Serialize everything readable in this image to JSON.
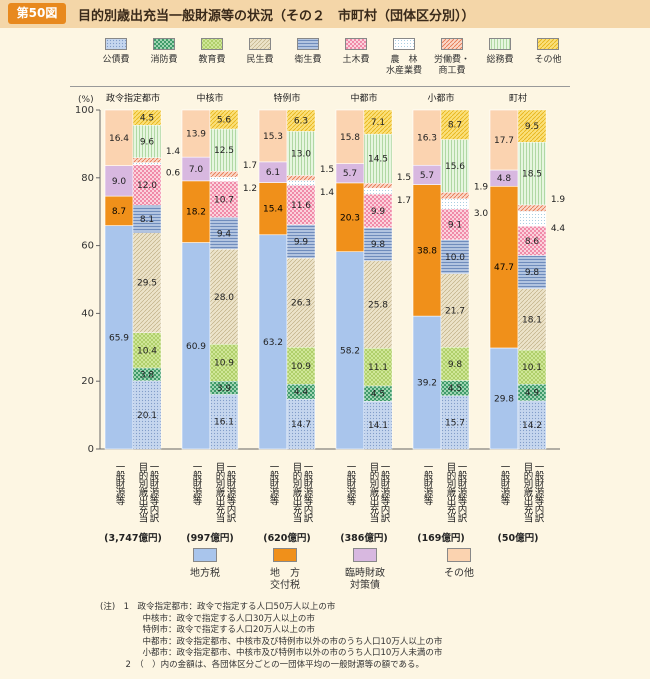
{
  "header": {
    "badge": "第50図",
    "title": "目的別歳出充当一般財源等の状況（その２　市町村（団体区分別））"
  },
  "legend": [
    {
      "key": "kosai",
      "label": "公債費",
      "label2": "",
      "color": "#b8cde8"
    },
    {
      "key": "shobo",
      "label": "消防費",
      "label2": "",
      "color": "#5fb88a"
    },
    {
      "key": "kyoiku",
      "label": "教育費",
      "label2": "",
      "color": "#c5e08a"
    },
    {
      "key": "minsei",
      "label": "民生費",
      "label2": "",
      "color": "#e0d4b4"
    },
    {
      "key": "eisei",
      "label": "衛生費",
      "label2": "",
      "color": "#8fa8cc"
    },
    {
      "key": "doboku",
      "label": "土木費",
      "label2": "",
      "color": "#f5b8c8"
    },
    {
      "key": "norin",
      "label": "農　林",
      "label2": "水産業費",
      "color": "#ffffff"
    },
    {
      "key": "rodo",
      "label": "労働費・",
      "label2": "商工費",
      "color": "#f0a888"
    },
    {
      "key": "somu",
      "label": "総務費",
      "label2": "",
      "color": "#d8f0d0"
    },
    {
      "key": "sonota",
      "label": "その他",
      "label2": "",
      "color": "#f8d040"
    }
  ],
  "chart_data": {
    "type": "bar",
    "stacked": true,
    "ylabel": "(%)",
    "ylim": [
      0,
      100
    ],
    "yticks": [
      0,
      20,
      40,
      60,
      80,
      100
    ],
    "groups": [
      {
        "name": "政令指定都市",
        "total": "(3,747億円)",
        "left": {
          "chiho": 65.9,
          "kofu": 8.7,
          "rinji": 9.0,
          "sonota": 16.4
        },
        "right": {
          "kosai": 20.1,
          "shobo": 3.8,
          "kyoiku": 10.4,
          "minsei": 29.5,
          "eisei": 8.1,
          "doboku": 12.0,
          "norin": 0.6,
          "rodo": 1.4,
          "somu": 9.6,
          "sonota": 4.5
        }
      },
      {
        "name": "中核市",
        "total": "(997億円)",
        "left": {
          "chiho": 60.9,
          "kofu": 18.2,
          "rinji": 7.0,
          "sonota": 13.9
        },
        "right": {
          "kosai": 16.1,
          "shobo": 3.9,
          "kyoiku": 10.9,
          "minsei": 28.0,
          "eisei": 9.4,
          "doboku": 10.7,
          "norin": 1.2,
          "rodo": 1.7,
          "somu": 12.5,
          "sonota": 5.6
        }
      },
      {
        "name": "特例市",
        "total": "(620億円)",
        "left": {
          "chiho": 63.2,
          "kofu": 15.4,
          "rinji": 6.1,
          "sonota": 15.3
        },
        "right": {
          "kosai": 14.7,
          "shobo": 4.4,
          "kyoiku": 10.9,
          "minsei": 26.3,
          "eisei": 9.9,
          "doboku": 11.6,
          "norin": 1.4,
          "rodo": 1.5,
          "somu": 13.0,
          "sonota": 6.3
        }
      },
      {
        "name": "中都市",
        "total": "(386億円)",
        "left": {
          "chiho": 58.2,
          "kofu": 20.3,
          "rinji": 5.7,
          "sonota": 15.8
        },
        "right": {
          "kosai": 14.1,
          "shobo": 4.5,
          "kyoiku": 11.1,
          "minsei": 25.8,
          "eisei": 9.8,
          "doboku": 9.9,
          "norin": 1.7,
          "rodo": 1.5,
          "somu": 14.5,
          "sonota": 7.1
        }
      },
      {
        "name": "小都市",
        "total": "(169億円)",
        "left": {
          "chiho": 39.2,
          "kofu": 38.8,
          "rinji": 5.7,
          "sonota": 16.3
        },
        "right": {
          "kosai": 15.7,
          "shobo": 4.5,
          "kyoiku": 9.8,
          "minsei": 21.7,
          "eisei": 10.0,
          "doboku": 9.1,
          "norin": 3.0,
          "rodo": 1.9,
          "somu": 15.6,
          "sonota": 8.7
        }
      },
      {
        "name": "町村",
        "total": "(50億円)",
        "left": {
          "chiho": 29.8,
          "kofu": 47.7,
          "rinji": 4.8,
          "sonota": 17.7
        },
        "right": {
          "kosai": 14.2,
          "shobo": 4.9,
          "kyoiku": 10.1,
          "minsei": 18.1,
          "eisei": 9.8,
          "doboku": 8.6,
          "norin": 4.4,
          "rodo": 1.9,
          "somu": 18.5,
          "sonota": 9.5
        }
      }
    ],
    "bar_labels": {
      "left": "一般財源等",
      "right": "目的別歳出充当一般財源等内訳"
    },
    "inbar_text": {
      "chiho": "地方税",
      "kofu": "地方交付税",
      "rinji": "臨時財政対策債",
      "sonota": "その他"
    },
    "revenue_legend": [
      {
        "key": "chiho",
        "label": "地方税",
        "color": "#a9c5ec"
      },
      {
        "key": "kofu",
        "label": "地　方\n交付税",
        "color": "#f0901a"
      },
      {
        "key": "rinji",
        "label": "臨時財政\n対策債",
        "color": "#d8b8e0"
      },
      {
        "key": "sonota",
        "label": "その他",
        "color": "#fbd3b0"
      }
    ]
  },
  "notes": [
    "(注)　1　政令指定都市：政令で指定する人口50万人以上の市",
    "　　　　　中核市：政令で指定する人口30万人以上の市",
    "　　　　　特例市：政令で指定する人口20万人以上の市",
    "　　　　　中都市：政令指定都市、中核市及び特例市以外の市のうち人口10万人以上の市",
    "　　　　　小都市：政令指定都市、中核市及び特例市以外の市のうち人口10万人未満の市",
    "　　　2　（　）内の金額は、各団体区分ごとの一団体平均の一般財源等の額である。"
  ]
}
